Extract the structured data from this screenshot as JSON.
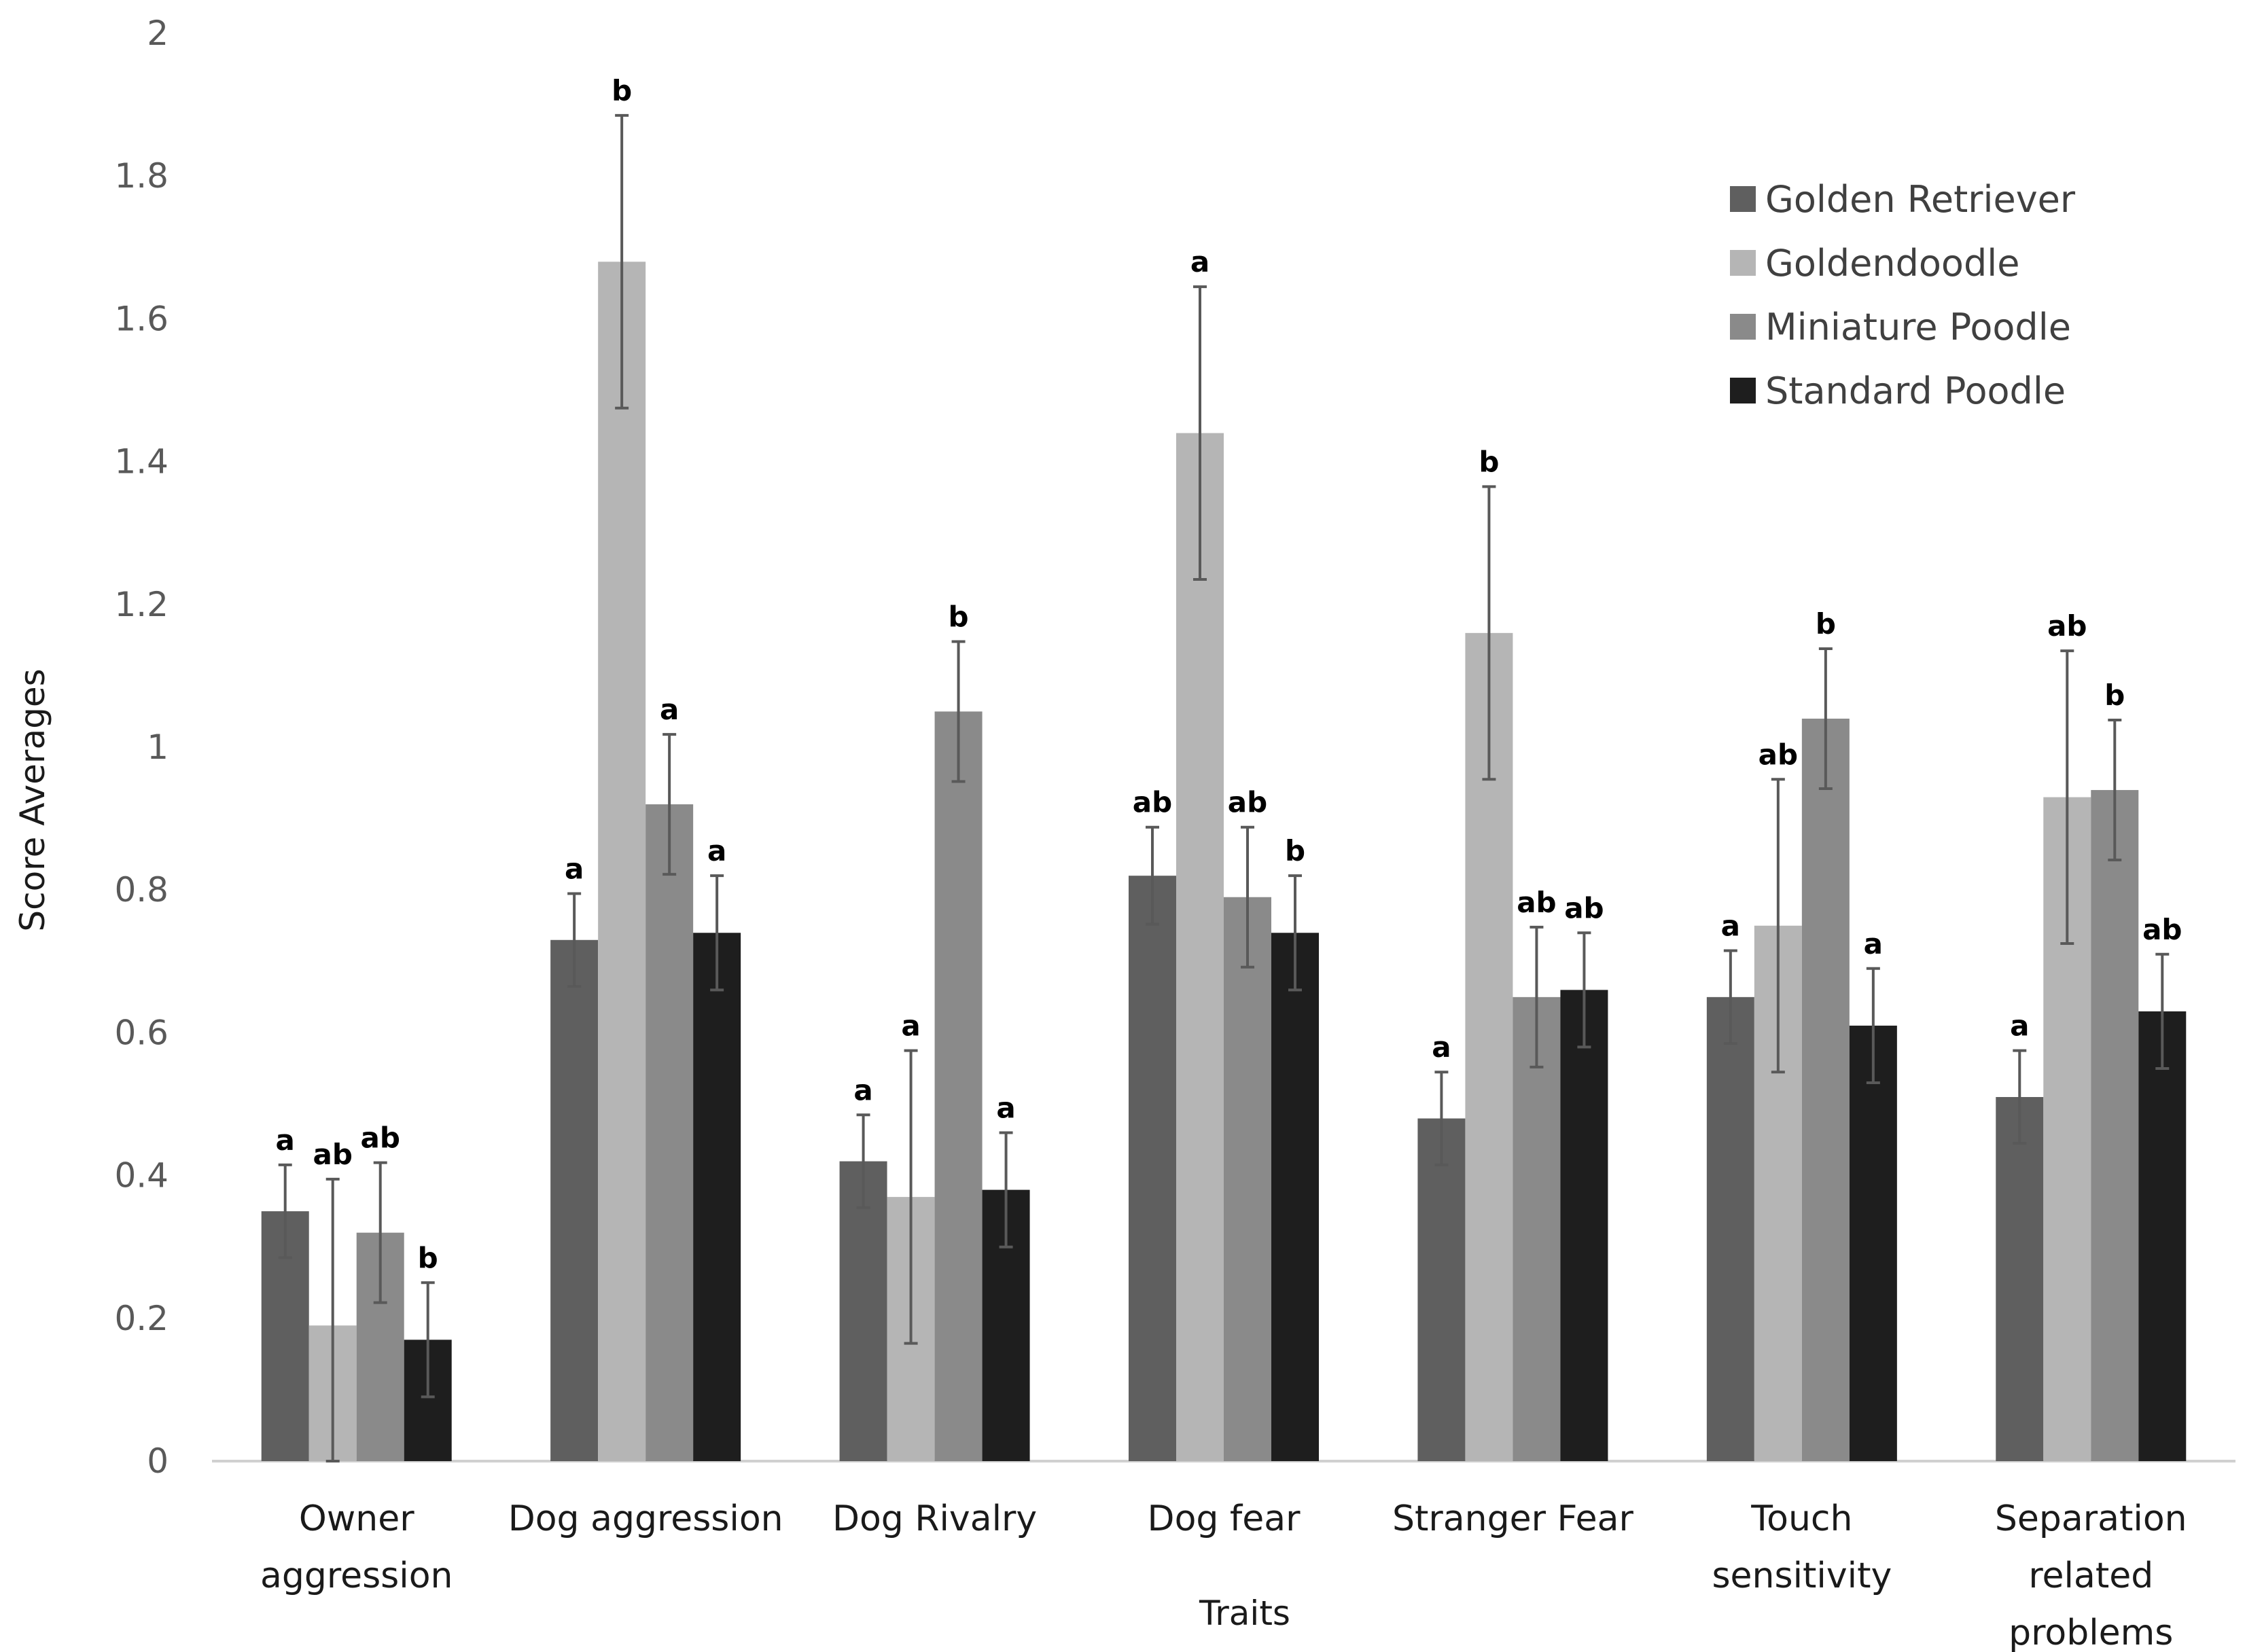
{
  "chart_data": {
    "type": "bar",
    "title": "",
    "xlabel": "Traits",
    "ylabel": "Score Averages",
    "ylim": [
      0,
      2
    ],
    "yticks": [
      0,
      0.2,
      0.4,
      0.6,
      0.8,
      1,
      1.2,
      1.4,
      1.6,
      1.8,
      2
    ],
    "ytick_labels": [
      "0",
      "0.2",
      "0.4",
      "0.6",
      "0.8",
      "1",
      "1.2",
      "1.4",
      "1.6",
      "1.8",
      "2"
    ],
    "grid": false,
    "legend_position": "top-right",
    "categories": [
      [
        "Owner",
        "aggression"
      ],
      [
        "Dog aggression"
      ],
      [
        "Dog Rivalry"
      ],
      [
        "Dog fear"
      ],
      [
        "Stranger Fear"
      ],
      [
        "Touch",
        "sensitivity"
      ],
      [
        "Separation",
        "related",
        "problems"
      ]
    ],
    "series": [
      {
        "name": "Golden Retriever",
        "color": "#5f5f5f",
        "values": [
          0.35,
          0.73,
          0.42,
          0.82,
          0.48,
          0.65,
          0.51
        ],
        "error": [
          0.065,
          0.065,
          0.065,
          0.068,
          0.065,
          0.065,
          0.065
        ],
        "significance": [
          "a",
          "a",
          "a",
          "ab",
          "a",
          "a",
          "a"
        ]
      },
      {
        "name": "Goldendoodle",
        "color": "#b5b5b5",
        "values": [
          0.19,
          1.68,
          0.37,
          1.44,
          1.16,
          0.75,
          0.93
        ],
        "error": [
          0.205,
          0.205,
          0.205,
          0.205,
          0.205,
          0.205,
          0.205
        ],
        "significance": [
          "ab",
          "b",
          "a",
          "a",
          "b",
          "ab",
          "ab"
        ]
      },
      {
        "name": "Miniature Poodle",
        "color": "#8a8a8a",
        "values": [
          0.32,
          0.92,
          1.05,
          0.79,
          0.65,
          1.04,
          0.94
        ],
        "error": [
          0.098,
          0.098,
          0.098,
          0.098,
          0.098,
          0.098,
          0.098
        ],
        "significance": [
          "ab",
          "a",
          "b",
          "ab",
          "ab",
          "b",
          "b"
        ]
      },
      {
        "name": "Standard Poodle",
        "color": "#1e1e1e",
        "values": [
          0.17,
          0.74,
          0.38,
          0.74,
          0.66,
          0.61,
          0.63
        ],
        "error": [
          0.08,
          0.08,
          0.08,
          0.08,
          0.08,
          0.08,
          0.08
        ],
        "significance": [
          "b",
          "a",
          "a",
          "b",
          "ab",
          "a",
          "ab"
        ]
      }
    ]
  }
}
